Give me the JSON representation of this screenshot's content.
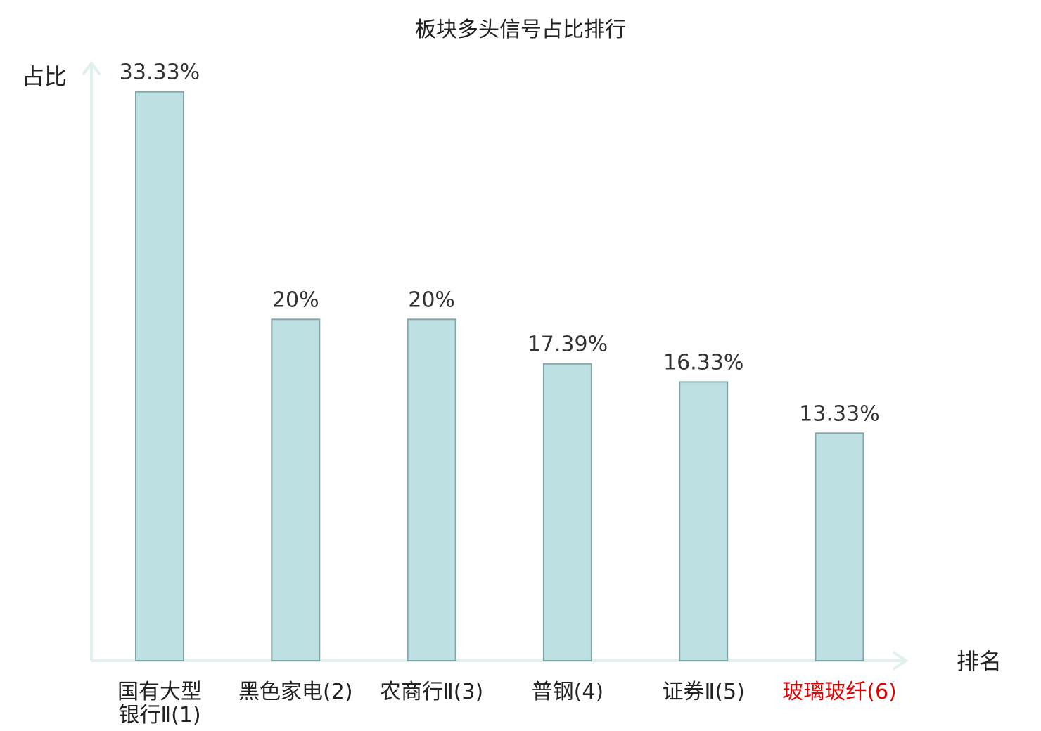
{
  "chart_data": {
    "type": "bar",
    "title": "板块多头信号占比排行",
    "ylabel": "占比",
    "xlabel": "排名",
    "ylim": [
      0,
      35
    ],
    "grid": false,
    "legend": "none",
    "categories": [
      [
        "国有大型",
        "银行Ⅱ(1)"
      ],
      [
        "黑色家电(2)"
      ],
      [
        "农商行Ⅱ(3)"
      ],
      [
        "普钢(4)"
      ],
      [
        "证券Ⅱ(5)"
      ],
      [
        "玻璃玻纤(6)"
      ]
    ],
    "values": [
      33.33,
      20,
      20,
      17.39,
      16.33,
      13.33
    ],
    "value_labels": [
      "33.33%",
      "20%",
      "20%",
      "17.39%",
      "16.33%",
      "13.33%"
    ],
    "highlight_index": 5,
    "colors": {
      "bar_fill": "#bde0e3",
      "bar_stroke": "#84a5a8",
      "axis": "#dff0ee",
      "highlight_label": "#e00000",
      "normal_label": "#222222"
    }
  }
}
